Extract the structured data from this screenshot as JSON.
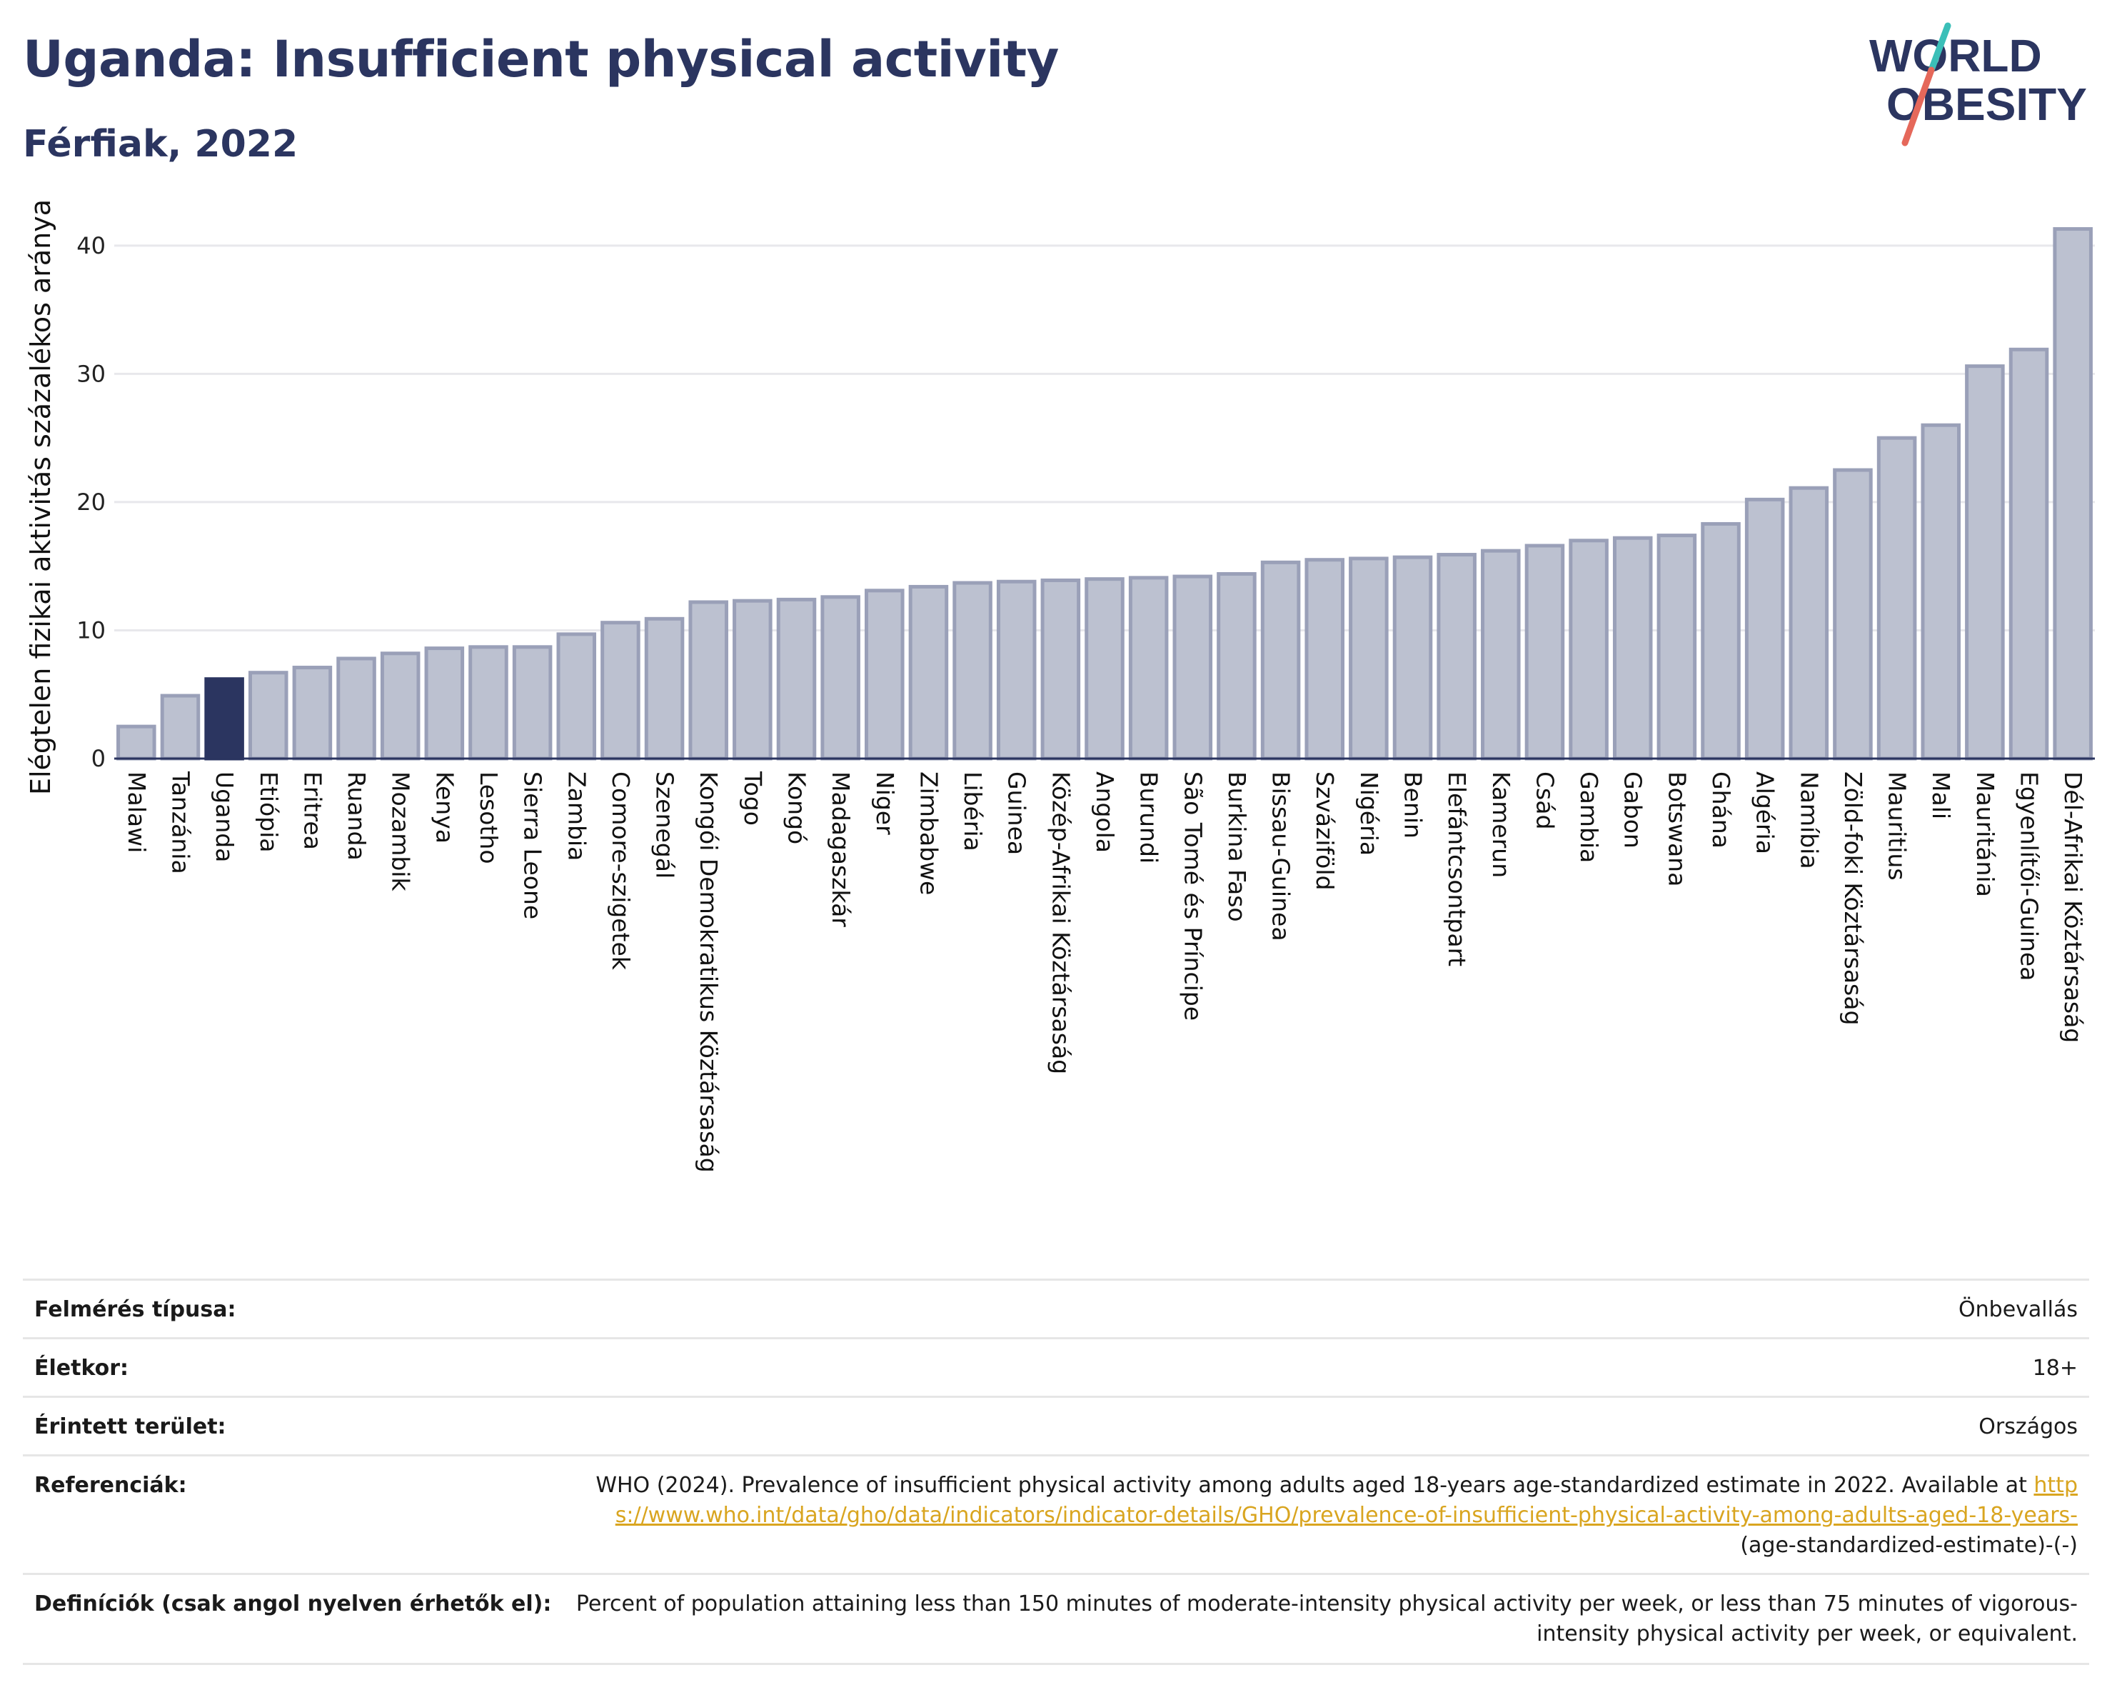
{
  "header": {
    "title": "Uganda: Insufficient physical activity",
    "subtitle": "Férfiak, 2022"
  },
  "logo": {
    "line1": "WORLD",
    "line2": "OBESITY"
  },
  "colors": {
    "bar": "#bcc1d0",
    "bar_edge": "#9aa0b8",
    "highlight": "#2b3560",
    "title": "#2b3560",
    "link": "#d9a520"
  },
  "chart_data": {
    "type": "bar",
    "title": "Uganda: Insufficient physical activity",
    "subtitle": "Férfiak, 2022",
    "xlabel": "",
    "ylabel": "Elégtelen fizikai aktivitás százalékos aránya",
    "ylim": [
      0,
      43
    ],
    "yticks": [
      0,
      10,
      20,
      30,
      40
    ],
    "grid": true,
    "highlight": "Uganda",
    "categories": [
      "Malawi",
      "Tanzánia",
      "Uganda",
      "Etiópia",
      "Eritrea",
      "Ruanda",
      "Mozambik",
      "Kenya",
      "Lesotho",
      "Sierra Leone",
      "Zambia",
      "Comore-szigetek",
      "Szenegál",
      "Kongói Demokratikus Köztársaság",
      "Togo",
      "Kongó",
      "Madagaszkár",
      "Niger",
      "Zimbabwe",
      "Libéria",
      "Guinea",
      "Közép-Afrikai Köztársaság",
      "Angola",
      "Burundi",
      "São Tomé és Príncipe",
      "Burkina Faso",
      "Bissau-Guinea",
      "Szváziföld",
      "Nigéria",
      "Benin",
      "Elefántcsontpart",
      "Kamerun",
      "Csád",
      "Gambia",
      "Gabon",
      "Botswana",
      "Ghána",
      "Algéria",
      "Namíbia",
      "Zöld-foki Köztársaság",
      "Mauritius",
      "Mali",
      "Mauritánia",
      "Egyenlítői-Guinea",
      "Dél-Afrikai Köztársaság"
    ],
    "values": [
      2.5,
      4.9,
      6.2,
      6.7,
      7.1,
      7.8,
      8.2,
      8.6,
      8.7,
      8.7,
      9.7,
      10.6,
      10.9,
      12.2,
      12.3,
      12.4,
      12.6,
      13.1,
      13.4,
      13.7,
      13.8,
      13.9,
      14.0,
      14.1,
      14.2,
      14.4,
      15.3,
      15.5,
      15.6,
      15.7,
      15.9,
      16.2,
      16.6,
      17.0,
      17.2,
      17.4,
      18.3,
      20.2,
      21.1,
      22.5,
      25.0,
      26.0,
      30.6,
      31.9,
      41.3
    ]
  },
  "meta": [
    {
      "key": "Felmérés típusa:",
      "value": "Önbevallás"
    },
    {
      "key": "Életkor:",
      "value": "18+"
    },
    {
      "key": "Érintett terület:",
      "value": "Országos"
    },
    {
      "key": "Referenciák:",
      "value_text": "WHO (2024). Prevalence of insufficient physical activity among adults aged 18-years age-standardized estimate in 2022. Available at",
      "value_link": "https://www.who.int/data/gho/data/indicators/indicator-details/GHO/prevalence-of-insufficient-physical-activity-among-adults-aged-18-years-",
      "value_tail": "(age-standardized-estimate)-(-)"
    },
    {
      "key": "Definíciók (csak angol nyelven érhetők el):",
      "value": "Percent of population attaining less than 150 minutes of moderate-intensity physical activity per week, or less than 75 minutes of vigorous-intensity physical activity per week, or equivalent."
    }
  ]
}
